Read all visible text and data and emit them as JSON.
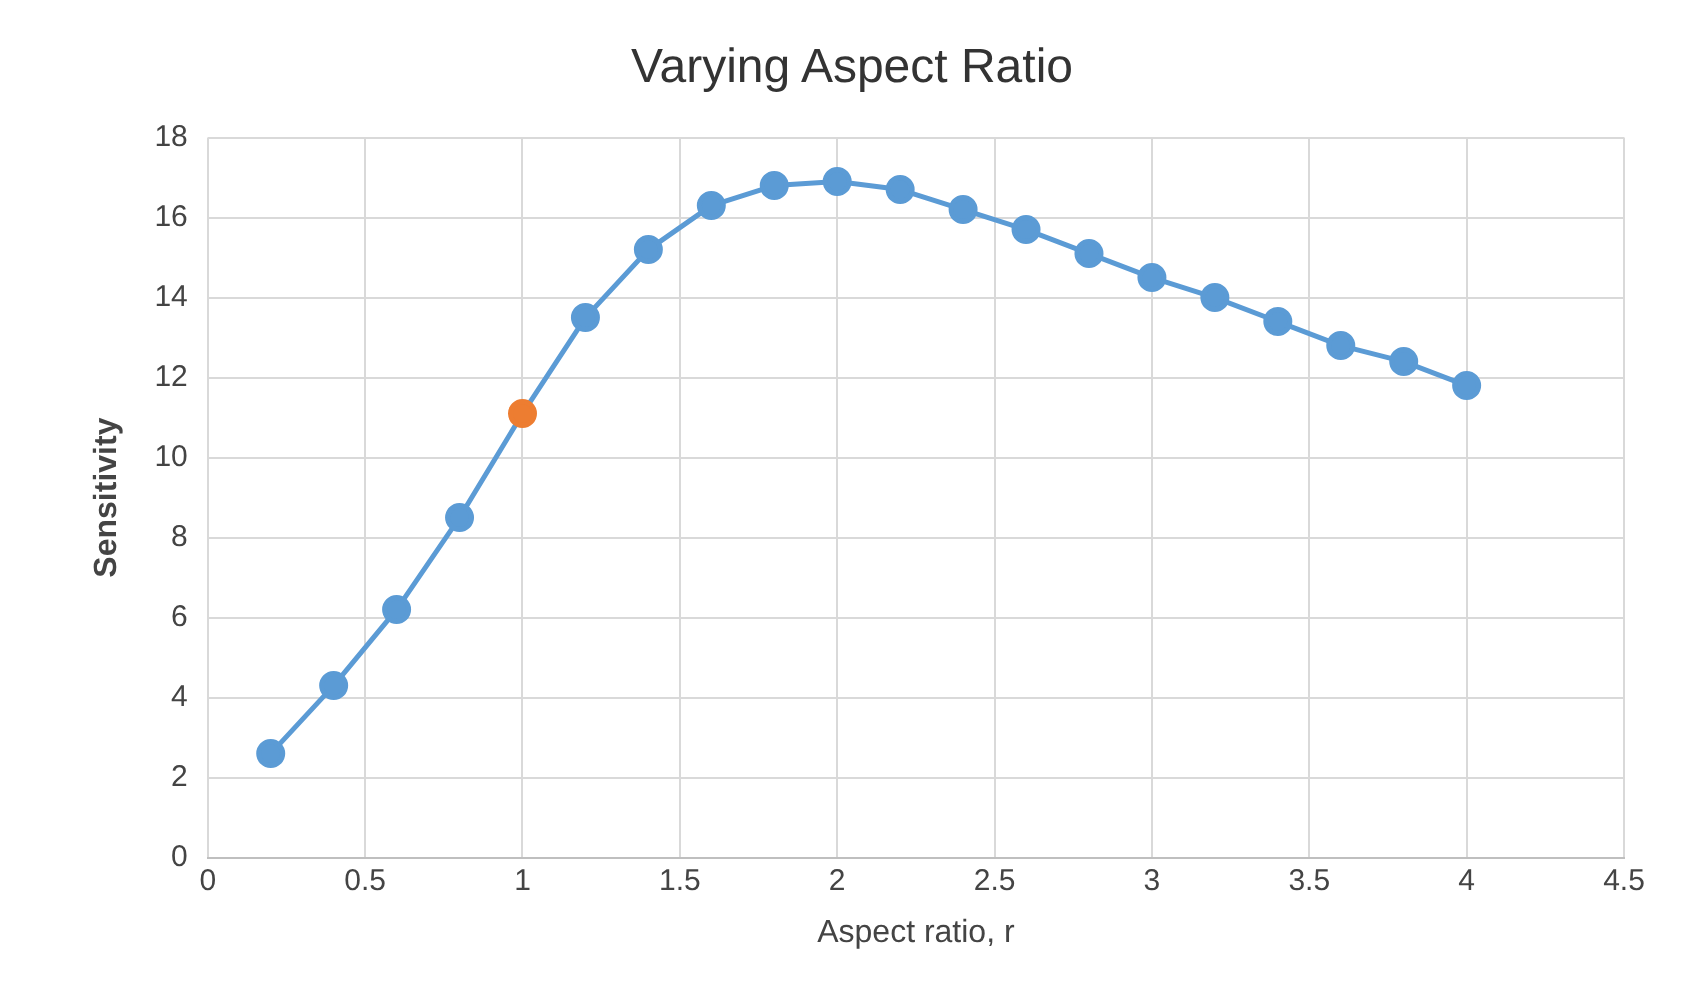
{
  "chart_data": {
    "type": "line",
    "title": "Varying Aspect Ratio",
    "xlabel": "Aspect ratio, r",
    "ylabel": "Sensitivity",
    "x": [
      0.2,
      0.4,
      0.6,
      0.8,
      1.0,
      1.2,
      1.4,
      1.6,
      1.8,
      2.0,
      2.2,
      2.4,
      2.6,
      2.8,
      3.0,
      3.2,
      3.4,
      3.6,
      3.8,
      4.0
    ],
    "series": [
      {
        "color": "#5b9bd5",
        "colors": [
          "#5b9bd5",
          "#5b9bd5",
          "#5b9bd5",
          "#5b9bd5",
          "#ed7d31",
          "#5b9bd5",
          "#5b9bd5",
          "#5b9bd5",
          "#5b9bd5",
          "#5b9bd5",
          "#5b9bd5",
          "#5b9bd5",
          "#5b9bd5",
          "#5b9bd5",
          "#5b9bd5",
          "#5b9bd5",
          "#5b9bd5",
          "#5b9bd5",
          "#5b9bd5",
          "#5b9bd5"
        ],
        "values": [
          2.6,
          4.3,
          6.2,
          8.5,
          11.1,
          13.5,
          15.2,
          16.3,
          16.8,
          16.9,
          16.7,
          16.2,
          15.7,
          15.1,
          14.5,
          14.0,
          13.4,
          12.8,
          12.4,
          11.8
        ]
      }
    ],
    "xlim": [
      0,
      4.5
    ],
    "xticks": [
      0,
      0.5,
      1,
      1.5,
      2,
      2.5,
      3,
      3.5,
      4,
      4.5
    ],
    "ylim": [
      0,
      18
    ],
    "yticks": [
      0,
      2,
      4,
      6,
      8,
      10,
      12,
      14,
      16,
      18
    ],
    "grid": true,
    "legend": false,
    "marker": "circle",
    "line_style": "solid"
  }
}
